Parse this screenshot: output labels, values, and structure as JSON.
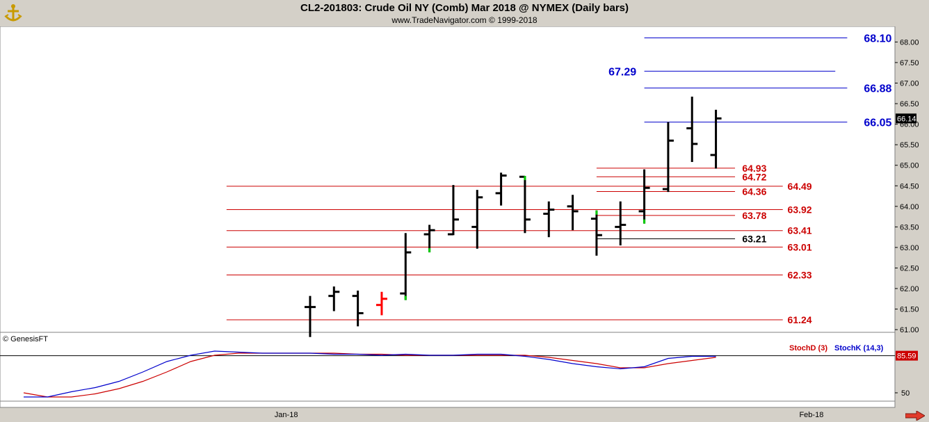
{
  "header": {
    "title": "CL2-201803:  Crude Oil NY (Comb) Mar 2018 @ NYMEX  (Daily bars)",
    "subtitle": "www.TradeNavigator.com © 1999-2018",
    "copyright": "© GenesisFT"
  },
  "colors": {
    "background": "#ffffff",
    "frame": "#d4d0c8",
    "bar": "#000000",
    "bar_red": "#ff0000",
    "bar_green": "#00cc00",
    "support": "#cc0000",
    "resistance": "#0000cc",
    "neutral": "#000000",
    "stochD": "#cc0000",
    "stochK": "#0000cc"
  },
  "chart_data": {
    "type": "ohlc",
    "price_axis": {
      "ylim": [
        60.63,
        68.21
      ],
      "ticks": [
        "61.00",
        "61.50",
        "62.00",
        "62.50",
        "63.00",
        "63.50",
        "64.00",
        "64.50",
        "65.00",
        "65.50",
        "66.00",
        "66.50",
        "67.00",
        "67.50",
        "68.00"
      ],
      "last_price": "66.14"
    },
    "x_ticks": [
      {
        "label": "Jan-18",
        "bar": 11
      },
      {
        "label": "Feb-18",
        "bar": 33
      }
    ],
    "bars": [
      {
        "i": 12,
        "o": 61.55,
        "h": 61.82,
        "l": 60.82,
        "c": 61.55,
        "color": "black"
      },
      {
        "i": 13,
        "o": 61.82,
        "h": 62.05,
        "l": 61.45,
        "c": 61.92,
        "color": "black"
      },
      {
        "i": 14,
        "o": 61.82,
        "h": 61.95,
        "l": 61.08,
        "c": 61.4,
        "color": "black"
      },
      {
        "i": 15,
        "o": 61.6,
        "h": 61.92,
        "l": 61.35,
        "c": 61.75,
        "color": "red"
      },
      {
        "i": 16,
        "o": 61.88,
        "h": 63.35,
        "l": 61.72,
        "c": 62.88,
        "color": "black",
        "mark": "low"
      },
      {
        "i": 17,
        "o": 63.32,
        "h": 63.55,
        "l": 62.88,
        "c": 63.42,
        "color": "black",
        "mark": "low"
      },
      {
        "i": 18,
        "o": 63.32,
        "h": 64.52,
        "l": 63.3,
        "c": 63.68,
        "color": "black"
      },
      {
        "i": 19,
        "o": 63.5,
        "h": 64.4,
        "l": 62.97,
        "c": 64.22,
        "color": "black"
      },
      {
        "i": 20,
        "o": 64.32,
        "h": 64.82,
        "l": 64.02,
        "c": 64.75,
        "color": "black"
      },
      {
        "i": 21,
        "o": 64.72,
        "h": 64.74,
        "l": 63.35,
        "c": 63.68,
        "color": "black",
        "mark": "high"
      },
      {
        "i": 22,
        "o": 63.82,
        "h": 64.12,
        "l": 63.25,
        "c": 63.92,
        "color": "black"
      },
      {
        "i": 23,
        "o": 64.0,
        "h": 64.28,
        "l": 63.42,
        "c": 63.88,
        "color": "black"
      },
      {
        "i": 24,
        "o": 63.7,
        "h": 63.9,
        "l": 62.8,
        "c": 63.3,
        "color": "black",
        "mark": "high"
      },
      {
        "i": 25,
        "o": 63.5,
        "h": 64.12,
        "l": 63.05,
        "c": 63.55,
        "color": "black"
      },
      {
        "i": 26,
        "o": 63.88,
        "h": 64.9,
        "l": 63.58,
        "c": 64.45,
        "color": "black",
        "mark": "low"
      },
      {
        "i": 27,
        "o": 64.42,
        "h": 66.05,
        "l": 64.35,
        "c": 65.6,
        "color": "black"
      },
      {
        "i": 28,
        "o": 65.9,
        "h": 66.67,
        "l": 65.08,
        "c": 65.52,
        "color": "black"
      },
      {
        "i": 29,
        "o": 65.25,
        "h": 66.35,
        "l": 64.92,
        "c": 66.14,
        "color": "black"
      }
    ],
    "levels": [
      {
        "value": 68.1,
        "label": "68.10",
        "color": "blue",
        "x0_bar": 26.0,
        "x1_bar": 34.5,
        "label_bar": 35.2
      },
      {
        "value": 67.29,
        "label": "67.29",
        "color": "blue",
        "x0_bar": 26.0,
        "x1_bar": 34.0,
        "label_bar": 24.5
      },
      {
        "value": 66.88,
        "label": "66.88",
        "color": "blue",
        "x0_bar": 26.0,
        "x1_bar": 34.5,
        "label_bar": 35.2
      },
      {
        "value": 66.05,
        "label": "66.05",
        "color": "blue",
        "x0_bar": 26.0,
        "x1_bar": 34.5,
        "label_bar": 35.2
      },
      {
        "value": 64.93,
        "label": "64.93",
        "color": "red",
        "x0_bar": 24.0,
        "x1_bar": 29.8,
        "label_bar": 30.1
      },
      {
        "value": 64.72,
        "label": "64.72",
        "color": "red",
        "x0_bar": 24.0,
        "x1_bar": 29.8,
        "label_bar": 30.1
      },
      {
        "value": 64.49,
        "label": "64.49",
        "color": "red",
        "x0_bar": 8.5,
        "x1_bar": 31.8,
        "label_bar": 32.0
      },
      {
        "value": 64.36,
        "label": "64.36",
        "color": "red",
        "x0_bar": 24.0,
        "x1_bar": 29.8,
        "label_bar": 30.1
      },
      {
        "value": 63.92,
        "label": "63.92",
        "color": "red",
        "x0_bar": 8.5,
        "x1_bar": 31.8,
        "label_bar": 32.0
      },
      {
        "value": 63.78,
        "label": "63.78",
        "color": "red",
        "x0_bar": 24.0,
        "x1_bar": 29.8,
        "label_bar": 30.1
      },
      {
        "value": 63.41,
        "label": "63.41",
        "color": "red",
        "x0_bar": 8.5,
        "x1_bar": 31.8,
        "label_bar": 32.0
      },
      {
        "value": 63.21,
        "label": "63.21",
        "color": "black",
        "x0_bar": 24.0,
        "x1_bar": 29.8,
        "label_bar": 30.1
      },
      {
        "value": 63.01,
        "label": "63.01",
        "color": "red",
        "x0_bar": 8.5,
        "x1_bar": 31.8,
        "label_bar": 32.0
      },
      {
        "value": 62.33,
        "label": "62.33",
        "color": "red",
        "x0_bar": 8.5,
        "x1_bar": 31.8,
        "label_bar": 32.0
      },
      {
        "value": 61.24,
        "label": "61.24",
        "color": "red",
        "x0_bar": 8.5,
        "x1_bar": 31.8,
        "label_bar": 32.0
      }
    ],
    "stochastic": {
      "legend": [
        "StochD (3)",
        "StochK (14,3)"
      ],
      "ylim": [
        42,
        108
      ],
      "ticks": [
        "50"
      ],
      "last_value": "85.59",
      "stochD": [
        [
          0.0,
          50
        ],
        [
          1.0,
          46
        ],
        [
          2.0,
          46
        ],
        [
          3.0,
          49
        ],
        [
          4.0,
          54
        ],
        [
          5.0,
          61
        ],
        [
          6.0,
          70
        ],
        [
          7.0,
          80
        ],
        [
          8.0,
          86
        ],
        [
          9.0,
          88
        ],
        [
          10.0,
          88
        ],
        [
          11.0,
          88
        ],
        [
          12.0,
          88
        ],
        [
          13.0,
          88
        ],
        [
          14.0,
          87
        ],
        [
          15.0,
          87
        ],
        [
          16.0,
          86
        ],
        [
          17.0,
          86
        ],
        [
          18.0,
          86
        ],
        [
          19.0,
          86
        ],
        [
          20.0,
          86
        ],
        [
          21.0,
          86
        ],
        [
          22.0,
          84
        ],
        [
          23.0,
          81
        ],
        [
          24.0,
          78
        ],
        [
          25.0,
          74
        ],
        [
          26.0,
          74
        ],
        [
          27.0,
          78
        ],
        [
          28.0,
          81
        ],
        [
          29.0,
          84
        ]
      ],
      "stochK": [
        [
          0.0,
          46
        ],
        [
          1.0,
          46
        ],
        [
          2.0,
          51
        ],
        [
          3.0,
          55
        ],
        [
          4.0,
          61
        ],
        [
          5.0,
          70
        ],
        [
          6.0,
          80
        ],
        [
          7.0,
          86
        ],
        [
          8.0,
          90
        ],
        [
          9.0,
          89
        ],
        [
          10.0,
          88
        ],
        [
          11.0,
          88
        ],
        [
          12.0,
          88
        ],
        [
          13.0,
          87
        ],
        [
          14.0,
          87
        ],
        [
          15.0,
          86
        ],
        [
          16.0,
          87
        ],
        [
          17.0,
          86
        ],
        [
          18.0,
          86
        ],
        [
          19.0,
          87
        ],
        [
          20.0,
          87
        ],
        [
          21.0,
          85
        ],
        [
          22.0,
          82
        ],
        [
          23.0,
          78
        ],
        [
          24.0,
          75
        ],
        [
          25.0,
          73
        ],
        [
          26.0,
          75
        ],
        [
          27.0,
          83
        ],
        [
          28.0,
          85
        ],
        [
          29.0,
          85
        ]
      ]
    }
  }
}
